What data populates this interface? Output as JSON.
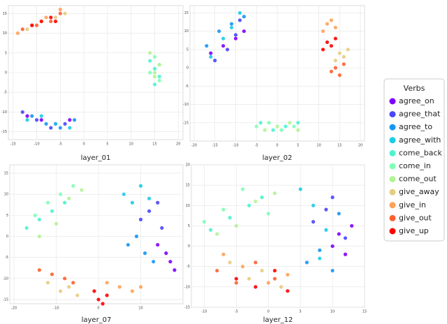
{
  "chart_data": [
    {
      "type": "scatter",
      "title": "layer_01",
      "xlim": [
        -16,
        21
      ],
      "ylim": [
        -17,
        17
      ],
      "xticks": [
        -15,
        -10,
        -5,
        0,
        5,
        10,
        15,
        20
      ],
      "yticks": [
        -15,
        -10,
        -5,
        0,
        5,
        10,
        15
      ],
      "grid": true,
      "series": [
        {
          "name": "agree_on",
          "color": "#8000ff",
          "x": [
            -12,
            -9,
            -6,
            -3
          ],
          "y": [
            -11,
            -12,
            -13,
            -12
          ]
        },
        {
          "name": "agree_that",
          "color": "#4a47fb",
          "x": [
            -13,
            -10,
            -7,
            -4
          ],
          "y": [
            -10,
            -12,
            -14,
            -13
          ]
        },
        {
          "name": "agree_to",
          "color": "#1996f3",
          "x": [
            -11,
            -8,
            -5,
            -2
          ],
          "y": [
            -11,
            -13,
            -14,
            -12
          ]
        },
        {
          "name": "agree_with",
          "color": "#1ccce8",
          "x": [
            -12,
            -9,
            -6,
            -3
          ],
          "y": [
            -12,
            -11,
            -13,
            -14
          ]
        },
        {
          "name": "come_back",
          "color": "#4df3ce",
          "x": [
            14,
            15,
            16,
            15
          ],
          "y": [
            3,
            1,
            -1,
            -3
          ]
        },
        {
          "name": "come_in",
          "color": "#80ffb4",
          "x": [
            15,
            16,
            14,
            16
          ],
          "y": [
            4,
            2,
            0,
            -2
          ]
        },
        {
          "name": "come_out",
          "color": "#b2f396",
          "x": [
            14,
            15,
            16,
            15
          ],
          "y": [
            5,
            0,
            2,
            -1
          ]
        },
        {
          "name": "give_away",
          "color": "#e6cc7e",
          "x": [
            -12,
            -9,
            -6,
            -4
          ],
          "y": [
            11,
            13,
            14,
            15
          ]
        },
        {
          "name": "give_in",
          "color": "#ffa256",
          "x": [
            -14,
            -11,
            -8,
            -5
          ],
          "y": [
            10,
            12,
            14,
            16
          ]
        },
        {
          "name": "give_out",
          "color": "#ff6030",
          "x": [
            -13,
            -10,
            -7,
            -5
          ],
          "y": [
            11,
            12,
            13,
            15
          ]
        },
        {
          "name": "give_up",
          "color": "#ff0000",
          "x": [
            -11,
            -9,
            -7,
            -6
          ],
          "y": [
            12,
            13,
            14,
            13
          ]
        }
      ]
    },
    {
      "type": "scatter",
      "title": "layer_02",
      "xlim": [
        -21,
        21
      ],
      "ylim": [
        -20,
        17
      ],
      "xticks": [
        -20,
        -15,
        -10,
        -5,
        0,
        5,
        10,
        15,
        20
      ],
      "yticks": [
        -15,
        -10,
        -5,
        0,
        5,
        10,
        15
      ],
      "grid": true,
      "series": [
        {
          "name": "agree_on",
          "color": "#8000ff",
          "x": [
            -16,
            -13,
            -10,
            -8
          ],
          "y": [
            4,
            6,
            8,
            10
          ]
        },
        {
          "name": "agree_that",
          "color": "#4a47fb",
          "x": [
            -15,
            -12,
            -10,
            -9
          ],
          "y": [
            2,
            5,
            9,
            13
          ]
        },
        {
          "name": "agree_to",
          "color": "#1996f3",
          "x": [
            -17,
            -14,
            -11,
            -8
          ],
          "y": [
            6,
            10,
            12,
            14
          ]
        },
        {
          "name": "agree_with",
          "color": "#1ccce8",
          "x": [
            -16,
            -13,
            -11,
            -9
          ],
          "y": [
            3,
            8,
            11,
            15
          ]
        },
        {
          "name": "come_back",
          "color": "#4df3ce",
          "x": [
            -4,
            -1,
            2,
            5
          ],
          "y": [
            -15,
            -17,
            -16,
            -15
          ]
        },
        {
          "name": "come_in",
          "color": "#80ffb4",
          "x": [
            -5,
            -2,
            1,
            4
          ],
          "y": [
            -16,
            -15,
            -17,
            -16
          ]
        },
        {
          "name": "come_out",
          "color": "#b2f396",
          "x": [
            -3,
            0,
            3,
            5
          ],
          "y": [
            -17,
            -16,
            -15,
            -17
          ]
        },
        {
          "name": "give_away",
          "color": "#e6cc7e",
          "x": [
            14,
            15,
            16,
            17
          ],
          "y": [
            2,
            4,
            3,
            5
          ]
        },
        {
          "name": "give_in",
          "color": "#ffa256",
          "x": [
            11,
            12,
            13,
            14
          ],
          "y": [
            10,
            12,
            13,
            11
          ]
        },
        {
          "name": "give_out",
          "color": "#ff6030",
          "x": [
            13,
            14,
            15,
            16
          ],
          "y": [
            -1,
            0,
            -2,
            1
          ]
        },
        {
          "name": "give_up",
          "color": "#ff0000",
          "x": [
            11,
            12,
            13,
            14
          ],
          "y": [
            5,
            7,
            6,
            8
          ]
        }
      ]
    },
    {
      "type": "scatter",
      "title": "layer_07",
      "xlim": [
        -21,
        20
      ],
      "ylim": [
        -16,
        17
      ],
      "xticks": [
        -20,
        -10,
        0,
        10
      ],
      "yticks": [
        -15,
        -10,
        -5,
        0,
        5,
        10,
        15
      ],
      "grid": true,
      "series": [
        {
          "name": "agree_on",
          "color": "#8000ff",
          "x": [
            14,
            16,
            17,
            18
          ],
          "y": [
            -2,
            -4,
            -6,
            -8
          ]
        },
        {
          "name": "agree_that",
          "color": "#4a47fb",
          "x": [
            10,
            12,
            14,
            15
          ],
          "y": [
            4,
            6,
            8,
            2
          ]
        },
        {
          "name": "agree_to",
          "color": "#1996f3",
          "x": [
            7,
            9,
            11,
            13
          ],
          "y": [
            -2,
            0,
            -4,
            -6
          ]
        },
        {
          "name": "agree_with",
          "color": "#1ccce8",
          "x": [
            6,
            8,
            10,
            12
          ],
          "y": [
            10,
            8,
            12,
            9
          ]
        },
        {
          "name": "come_back",
          "color": "#4df3ce",
          "x": [
            -17,
            -14,
            -11,
            -8
          ],
          "y": [
            2,
            4,
            6,
            8
          ]
        },
        {
          "name": "come_in",
          "color": "#80ffb4",
          "x": [
            -15,
            -12,
            -9,
            -6
          ],
          "y": [
            5,
            8,
            10,
            12
          ]
        },
        {
          "name": "come_out",
          "color": "#b2f396",
          "x": [
            -14,
            -10,
            -7,
            -4
          ],
          "y": [
            0,
            3,
            9,
            11
          ]
        },
        {
          "name": "give_away",
          "color": "#e6cc7e",
          "x": [
            -12,
            -9,
            -7,
            -5
          ],
          "y": [
            -11,
            -13,
            -12,
            -14
          ]
        },
        {
          "name": "give_in",
          "color": "#ffa256",
          "x": [
            2,
            5,
            8,
            10
          ],
          "y": [
            -11,
            -12,
            -13,
            -12
          ]
        },
        {
          "name": "give_out",
          "color": "#ff6030",
          "x": [
            -14,
            -11,
            -8,
            -6
          ],
          "y": [
            -8,
            -9,
            -10,
            -11
          ]
        },
        {
          "name": "give_up",
          "color": "#ff0000",
          "x": [
            -1,
            0,
            1,
            2
          ],
          "y": [
            -13,
            -15,
            -16,
            -14
          ]
        }
      ]
    },
    {
      "type": "scatter",
      "title": "layer_12",
      "xlim": [
        -12,
        15
      ],
      "ylim": [
        -15,
        20
      ],
      "xticks": [
        -10,
        -5,
        0,
        5,
        10,
        15
      ],
      "yticks": [
        -15,
        -10,
        -5,
        0,
        5,
        10,
        15,
        20
      ],
      "grid": true,
      "series": [
        {
          "name": "agree_on",
          "color": "#8000ff",
          "x": [
            10,
            11,
            12,
            13
          ],
          "y": [
            0,
            3,
            -2,
            5
          ]
        },
        {
          "name": "agree_that",
          "color": "#4a47fb",
          "x": [
            7,
            9,
            10,
            12
          ],
          "y": [
            6,
            9,
            12,
            2
          ]
        },
        {
          "name": "agree_to",
          "color": "#1996f3",
          "x": [
            6,
            8,
            10,
            11
          ],
          "y": [
            -4,
            -1,
            -6,
            8
          ]
        },
        {
          "name": "agree_with",
          "color": "#1ccce8",
          "x": [
            5,
            7,
            9,
            8
          ],
          "y": [
            14,
            10,
            4,
            -3
          ]
        },
        {
          "name": "come_back",
          "color": "#4df3ce",
          "x": [
            -9,
            -6,
            -3,
            -1
          ],
          "y": [
            4,
            7,
            10,
            12
          ]
        },
        {
          "name": "come_in",
          "color": "#80ffb4",
          "x": [
            -10,
            -7,
            -4,
            0
          ],
          "y": [
            6,
            9,
            14,
            8
          ]
        },
        {
          "name": "come_out",
          "color": "#b2f396",
          "x": [
            -8,
            -5,
            -2,
            1
          ],
          "y": [
            3,
            5,
            11,
            13
          ]
        },
        {
          "name": "give_away",
          "color": "#e6cc7e",
          "x": [
            -6,
            -3,
            -1,
            2
          ],
          "y": [
            -4,
            -8,
            -6,
            -10
          ]
        },
        {
          "name": "give_in",
          "color": "#ffa256",
          "x": [
            -7,
            -4,
            0,
            3
          ],
          "y": [
            -2,
            -5,
            -9,
            -7
          ]
        },
        {
          "name": "give_out",
          "color": "#ff6030",
          "x": [
            -8,
            -5,
            -2,
            1
          ],
          "y": [
            -6,
            -9,
            -4,
            -8
          ]
        },
        {
          "name": "give_up",
          "color": "#ff0000",
          "x": [
            -5,
            -2,
            1,
            3
          ],
          "y": [
            -8,
            -10,
            -6,
            -11
          ]
        }
      ]
    }
  ],
  "legend": {
    "title": "Verbs"
  }
}
